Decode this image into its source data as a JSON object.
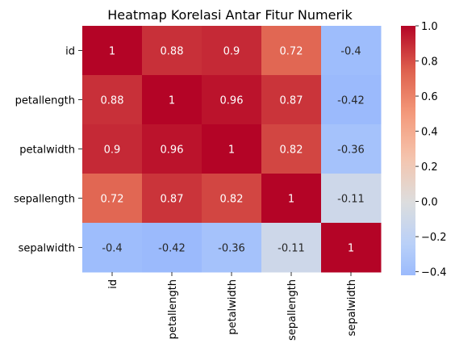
{
  "chart_data": {
    "type": "heatmap",
    "title": "Heatmap Korelasi Antar Fitur Numerik",
    "row_labels": [
      "id",
      "petallength",
      "petalwidth",
      "sepallength",
      "sepalwidth"
    ],
    "col_labels": [
      "id",
      "petallength",
      "petalwidth",
      "sepallength",
      "sepalwidth"
    ],
    "values": [
      [
        1,
        0.88,
        0.9,
        0.72,
        -0.4
      ],
      [
        0.88,
        1,
        0.96,
        0.87,
        -0.42
      ],
      [
        0.9,
        0.96,
        1,
        0.82,
        -0.36
      ],
      [
        0.72,
        0.87,
        0.82,
        1,
        -0.11
      ],
      [
        -0.4,
        -0.42,
        -0.36,
        -0.11,
        1
      ]
    ],
    "annotations": true,
    "colormap": "coolwarm",
    "center": 0,
    "colorbar": {
      "range": [
        -0.42,
        1.0
      ],
      "ticks": [
        -0.4,
        -0.2,
        0.0,
        0.2,
        0.4,
        0.6,
        0.8,
        1.0
      ],
      "tick_labels": [
        "−0.4",
        "−0.2",
        "0.0",
        "0.2",
        "0.4",
        "0.6",
        "0.8",
        "1.0"
      ],
      "placement": "right"
    }
  }
}
